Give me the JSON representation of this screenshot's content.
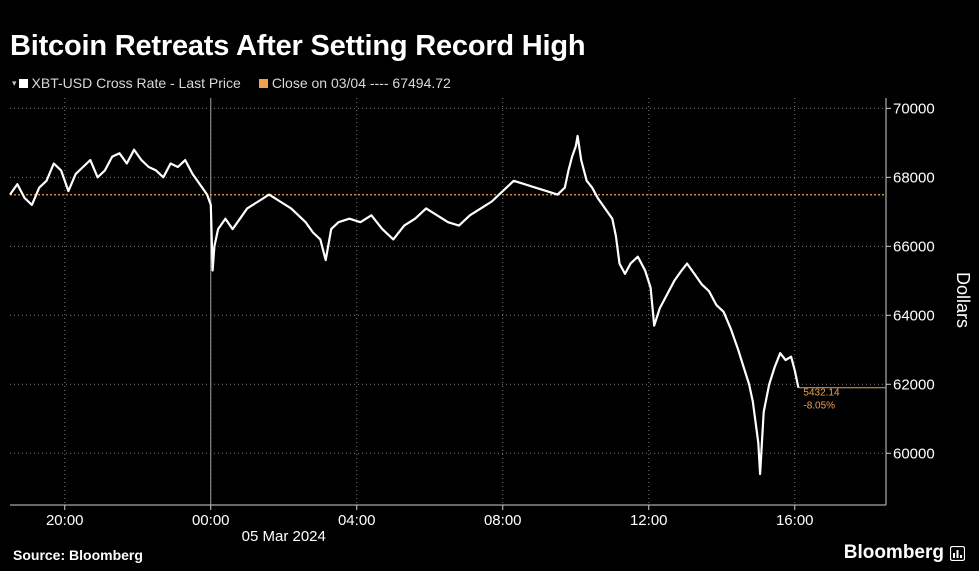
{
  "title": "Bitcoin Retreats After Setting Record High",
  "legend": {
    "series_label": "XBT-USD Cross Rate - Last Price",
    "close_label": "Close on 03/04 ---- 67494.72",
    "series_color": "#ffffff",
    "close_color": "#f0a050"
  },
  "source": "Source: Bloomberg",
  "brand": "Bloomberg",
  "brand_icon": "chart-bars-icon",
  "chart_data": {
    "type": "line",
    "ylabel": "Dollars",
    "xlabel": "05 Mar 2024",
    "x_unit": "hours relative to 00:00 05 Mar 2024",
    "xlim": [
      -5.5,
      18.5
    ],
    "ylim": [
      58500,
      70300
    ],
    "y_ticks": [
      60000,
      62000,
      64000,
      66000,
      68000,
      70000
    ],
    "y_tick_labels": [
      "60000",
      "62000",
      "64000",
      "66000",
      "68000",
      "70000"
    ],
    "x_ticks": [
      -4,
      0,
      4,
      8,
      12,
      16
    ],
    "x_tick_labels": [
      "20:00",
      "00:00",
      "04:00",
      "08:00",
      "12:00",
      "16:00"
    ],
    "date_label": "05 Mar 2024",
    "grid": true,
    "axis_side": "right",
    "reference_line": {
      "name": "Close on 03/04",
      "value": 67494.72
    },
    "last_value_annotation": [
      "5432.14",
      "-8.05%"
    ],
    "series": [
      {
        "name": "XBT-USD Cross Rate - Last Price",
        "points": [
          [
            -5.5,
            67500
          ],
          [
            -5.3,
            67800
          ],
          [
            -5.1,
            67400
          ],
          [
            -4.9,
            67200
          ],
          [
            -4.7,
            67700
          ],
          [
            -4.5,
            67900
          ],
          [
            -4.3,
            68400
          ],
          [
            -4.1,
            68200
          ],
          [
            -3.9,
            67600
          ],
          [
            -3.7,
            68100
          ],
          [
            -3.5,
            68300
          ],
          [
            -3.3,
            68500
          ],
          [
            -3.1,
            68000
          ],
          [
            -2.9,
            68200
          ],
          [
            -2.7,
            68600
          ],
          [
            -2.5,
            68700
          ],
          [
            -2.3,
            68400
          ],
          [
            -2.1,
            68800
          ],
          [
            -1.9,
            68500
          ],
          [
            -1.7,
            68300
          ],
          [
            -1.5,
            68200
          ],
          [
            -1.3,
            68000
          ],
          [
            -1.1,
            68400
          ],
          [
            -0.9,
            68300
          ],
          [
            -0.7,
            68500
          ],
          [
            -0.5,
            68100
          ],
          [
            -0.3,
            67800
          ],
          [
            -0.1,
            67500
          ],
          [
            0.0,
            67200
          ],
          [
            0.05,
            65300
          ],
          [
            0.1,
            66000
          ],
          [
            0.2,
            66500
          ],
          [
            0.4,
            66800
          ],
          [
            0.6,
            66500
          ],
          [
            0.8,
            66800
          ],
          [
            1.0,
            67100
          ],
          [
            1.3,
            67300
          ],
          [
            1.6,
            67500
          ],
          [
            1.9,
            67300
          ],
          [
            2.2,
            67100
          ],
          [
            2.4,
            66900
          ],
          [
            2.6,
            66700
          ],
          [
            2.8,
            66400
          ],
          [
            3.0,
            66200
          ],
          [
            3.15,
            65600
          ],
          [
            3.3,
            66500
          ],
          [
            3.5,
            66700
          ],
          [
            3.8,
            66800
          ],
          [
            4.1,
            66700
          ],
          [
            4.4,
            66900
          ],
          [
            4.7,
            66500
          ],
          [
            5.0,
            66200
          ],
          [
            5.3,
            66600
          ],
          [
            5.6,
            66800
          ],
          [
            5.9,
            67100
          ],
          [
            6.2,
            66900
          ],
          [
            6.5,
            66700
          ],
          [
            6.8,
            66600
          ],
          [
            7.1,
            66900
          ],
          [
            7.4,
            67100
          ],
          [
            7.7,
            67300
          ],
          [
            8.0,
            67600
          ],
          [
            8.3,
            67900
          ],
          [
            8.6,
            67800
          ],
          [
            8.9,
            67700
          ],
          [
            9.2,
            67600
          ],
          [
            9.5,
            67500
          ],
          [
            9.7,
            67700
          ],
          [
            9.8,
            68200
          ],
          [
            9.9,
            68600
          ],
          [
            10.0,
            68900
          ],
          [
            10.05,
            69200
          ],
          [
            10.15,
            68500
          ],
          [
            10.3,
            67900
          ],
          [
            10.45,
            67700
          ],
          [
            10.6,
            67400
          ],
          [
            10.8,
            67100
          ],
          [
            11.0,
            66800
          ],
          [
            11.1,
            66300
          ],
          [
            11.2,
            65500
          ],
          [
            11.35,
            65200
          ],
          [
            11.5,
            65500
          ],
          [
            11.7,
            65700
          ],
          [
            11.9,
            65300
          ],
          [
            12.05,
            64800
          ],
          [
            12.15,
            63700
          ],
          [
            12.3,
            64200
          ],
          [
            12.5,
            64600
          ],
          [
            12.7,
            65000
          ],
          [
            12.9,
            65300
          ],
          [
            13.05,
            65500
          ],
          [
            13.25,
            65200
          ],
          [
            13.45,
            64900
          ],
          [
            13.65,
            64700
          ],
          [
            13.85,
            64300
          ],
          [
            14.05,
            64100
          ],
          [
            14.25,
            63600
          ],
          [
            14.45,
            63000
          ],
          [
            14.6,
            62500
          ],
          [
            14.75,
            62000
          ],
          [
            14.85,
            61500
          ],
          [
            15.0,
            60300
          ],
          [
            15.05,
            59400
          ],
          [
            15.15,
            61200
          ],
          [
            15.3,
            62000
          ],
          [
            15.45,
            62500
          ],
          [
            15.6,
            62900
          ],
          [
            15.75,
            62700
          ],
          [
            15.9,
            62800
          ],
          [
            16.0,
            62400
          ],
          [
            16.1,
            61900
          ]
        ]
      }
    ]
  }
}
